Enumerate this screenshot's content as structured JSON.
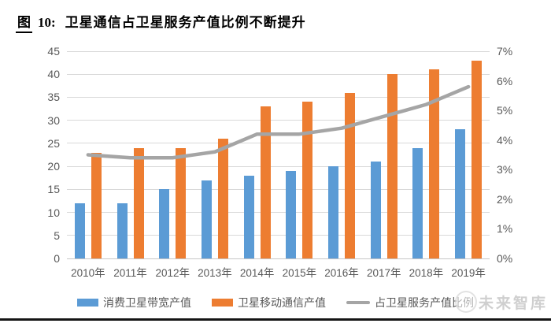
{
  "figure": {
    "label_prefix": "图",
    "label_number": "10:",
    "title": "卫星通信占卫星服务产值比例不断提升"
  },
  "watermark": "未来智库",
  "chart_data": {
    "type": "bar",
    "subtype": "grouped bars with secondary-axis line",
    "title": "卫星通信占卫星服务产值比例不断提升",
    "categories": [
      "2010年",
      "2011年",
      "2012年",
      "2013年",
      "2014年",
      "2015年",
      "2016年",
      "2017年",
      "2018年",
      "2019年"
    ],
    "series": [
      {
        "name": "消费卫星带宽产值",
        "type": "bar",
        "axis": "left",
        "color": "#5b9bd5",
        "values": [
          12,
          12,
          15,
          17,
          18,
          19,
          20,
          21,
          24,
          28
        ]
      },
      {
        "name": "卫星移动通信产值",
        "type": "bar",
        "axis": "left",
        "color": "#ed7d31",
        "values": [
          23,
          24,
          24,
          26,
          33,
          34,
          36,
          40,
          41,
          43
        ]
      },
      {
        "name": "占卫星服务产值比例",
        "type": "line",
        "axis": "right",
        "color": "#a5a5a5",
        "values": [
          3.5,
          3.4,
          3.4,
          3.6,
          4.2,
          4.2,
          4.4,
          4.8,
          5.2,
          5.8
        ],
        "unit": "%"
      }
    ],
    "left_axis": {
      "min": 0,
      "max": 45,
      "step": 5,
      "ticks": [
        "0",
        "5",
        "10",
        "15",
        "20",
        "25",
        "30",
        "35",
        "40",
        "45"
      ]
    },
    "right_axis": {
      "min": 0,
      "max": 7,
      "step": 1,
      "unit": "%",
      "ticks": [
        "0%",
        "1%",
        "2%",
        "3%",
        "4%",
        "5%",
        "6%",
        "7%"
      ]
    },
    "grid": true,
    "legend_position": "bottom"
  }
}
